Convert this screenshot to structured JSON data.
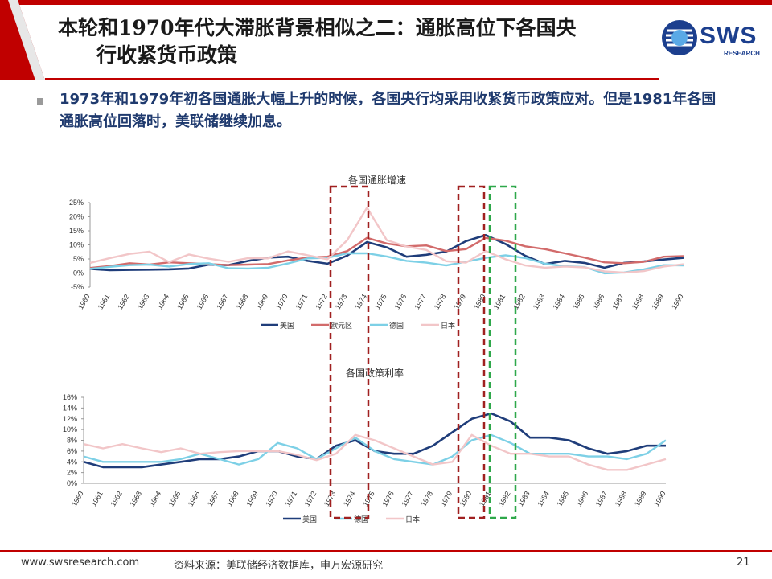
{
  "slide": {
    "title_line1": "本轮和1970年代大滞胀背景相似之二：通胀高位下各国央",
    "title_line2": "行收紧货币政策",
    "bullet": "1973年和1979年初各国通胀大幅上升的时候，各国央行均采用收紧货币政策应对。但是1981年各国通胀高位回落时，美联储继续加息。",
    "logo_text": "SWS",
    "logo_sub": "RESEARCH",
    "footer_url": "www.swsresearch.com",
    "footer_source": "资料来源：美联储经济数据库，申万宏源研究",
    "page_number": "21"
  },
  "colors": {
    "us": "#1f3d7a",
    "eu": "#d26b6b",
    "de": "#7dd0e6",
    "jp": "#f2c6c8",
    "red_box": "#a02020",
    "green_box": "#2ea84a",
    "banner_red": "#c00000"
  },
  "chart_data": [
    {
      "type": "line",
      "title": "各国通胀增速",
      "x": [
        "1960",
        "1961",
        "1962",
        "1963",
        "1964",
        "1965",
        "1966",
        "1967",
        "1968",
        "1969",
        "1970",
        "1971",
        "1972",
        "1973",
        "1974",
        "1975",
        "1976",
        "1977",
        "1978",
        "1979",
        "1980",
        "1981",
        "1982",
        "1983",
        "1984",
        "1985",
        "1986",
        "1987",
        "1988",
        "1989",
        "1990"
      ],
      "ylim": [
        -5,
        25
      ],
      "yticks": [
        "25%",
        "20%",
        "15%",
        "10%",
        "5%",
        "0%",
        "-5%"
      ],
      "ytick_values": [
        25,
        20,
        15,
        10,
        5,
        0,
        -5
      ],
      "legend_position": "bottom",
      "series": [
        {
          "name": "美国",
          "key": "us",
          "values": [
            1.5,
            1.0,
            1.1,
            1.2,
            1.3,
            1.6,
            3.0,
            2.8,
            4.3,
            5.5,
            5.8,
            4.3,
            3.3,
            6.2,
            11.0,
            9.1,
            5.8,
            6.5,
            7.6,
            11.3,
            13.5,
            10.3,
            6.1,
            3.2,
            4.3,
            3.6,
            1.9,
            3.6,
            4.1,
            4.8,
            5.4
          ]
        },
        {
          "name": "欧元区",
          "key": "eu",
          "values": [
            1.8,
            2.5,
            3.5,
            3.0,
            3.8,
            3.5,
            3.2,
            2.8,
            3.0,
            3.2,
            4.5,
            5.5,
            5.8,
            7.8,
            12.5,
            10.5,
            9.5,
            9.8,
            7.8,
            8.5,
            12.5,
            11.5,
            9.5,
            8.5,
            7.0,
            5.5,
            3.8,
            3.5,
            4.0,
            5.8,
            6.0
          ]
        },
        {
          "name": "德国",
          "key": "de",
          "values": [
            1.5,
            2.2,
            2.8,
            3.0,
            2.3,
            3.2,
            3.5,
            1.7,
            1.6,
            1.9,
            3.4,
            5.2,
            5.4,
            7.0,
            7.0,
            5.9,
            4.3,
            3.7,
            2.7,
            4.0,
            5.4,
            6.3,
            5.3,
            3.3,
            2.4,
            2.1,
            -0.1,
            0.2,
            1.3,
            2.8,
            2.7
          ]
        },
        {
          "name": "日本",
          "key": "jp",
          "values": [
            3.6,
            5.3,
            6.8,
            7.6,
            3.9,
            6.6,
            5.1,
            4.0,
            5.3,
            5.2,
            7.7,
            6.3,
            4.9,
            11.7,
            23.2,
            11.7,
            9.4,
            8.2,
            4.2,
            3.7,
            7.8,
            4.9,
            2.7,
            1.9,
            2.3,
            2.0,
            0.6,
            0.1,
            0.7,
            2.3,
            3.1
          ]
        }
      ]
    },
    {
      "type": "line",
      "title": "各国政策利率",
      "x": [
        "1960",
        "1961",
        "1962",
        "1963",
        "1964",
        "1965",
        "1966",
        "1967",
        "1968",
        "1969",
        "1970",
        "1971",
        "1972",
        "1973",
        "1974",
        "1975",
        "1976",
        "1977",
        "1978",
        "1979",
        "1980",
        "1981",
        "1982",
        "1983",
        "1984",
        "1985",
        "1986",
        "1987",
        "1988",
        "1989",
        "1990"
      ],
      "ylim": [
        0,
        16
      ],
      "yticks": [
        "16%",
        "14%",
        "12%",
        "10%",
        "8%",
        "6%",
        "4%",
        "2%",
        "0%"
      ],
      "ytick_values": [
        16,
        14,
        12,
        10,
        8,
        6,
        4,
        2,
        0
      ],
      "legend_position": "bottom",
      "series": [
        {
          "name": "美国",
          "key": "us",
          "values": [
            4.0,
            3.0,
            3.0,
            3.0,
            3.5,
            4.0,
            4.5,
            4.5,
            5.0,
            6.0,
            6.0,
            5.0,
            4.5,
            7.0,
            8.0,
            6.0,
            5.5,
            5.5,
            7.0,
            9.5,
            12.0,
            13.0,
            11.5,
            8.5,
            8.5,
            8.0,
            6.5,
            5.5,
            6.0,
            7.0,
            7.0
          ]
        },
        {
          "name": "德国",
          "key": "de",
          "values": [
            5.0,
            4.0,
            4.0,
            4.0,
            4.0,
            4.5,
            5.5,
            4.5,
            3.5,
            4.5,
            7.5,
            6.5,
            4.5,
            6.5,
            8.5,
            6.0,
            4.5,
            4.0,
            3.5,
            5.0,
            8.0,
            9.0,
            7.5,
            5.5,
            5.5,
            5.5,
            5.0,
            5.0,
            4.5,
            5.5,
            8.0
          ]
        },
        {
          "name": "日本",
          "key": "jp",
          "values": [
            7.3,
            6.5,
            7.3,
            6.5,
            5.8,
            6.5,
            5.5,
            5.8,
            6.0,
            6.0,
            6.0,
            5.3,
            4.3,
            5.5,
            9.0,
            8.0,
            6.5,
            5.0,
            3.5,
            4.0,
            9.0,
            7.0,
            5.5,
            5.5,
            5.0,
            5.0,
            3.5,
            2.5,
            2.5,
            3.5,
            4.5
          ]
        }
      ]
    }
  ]
}
